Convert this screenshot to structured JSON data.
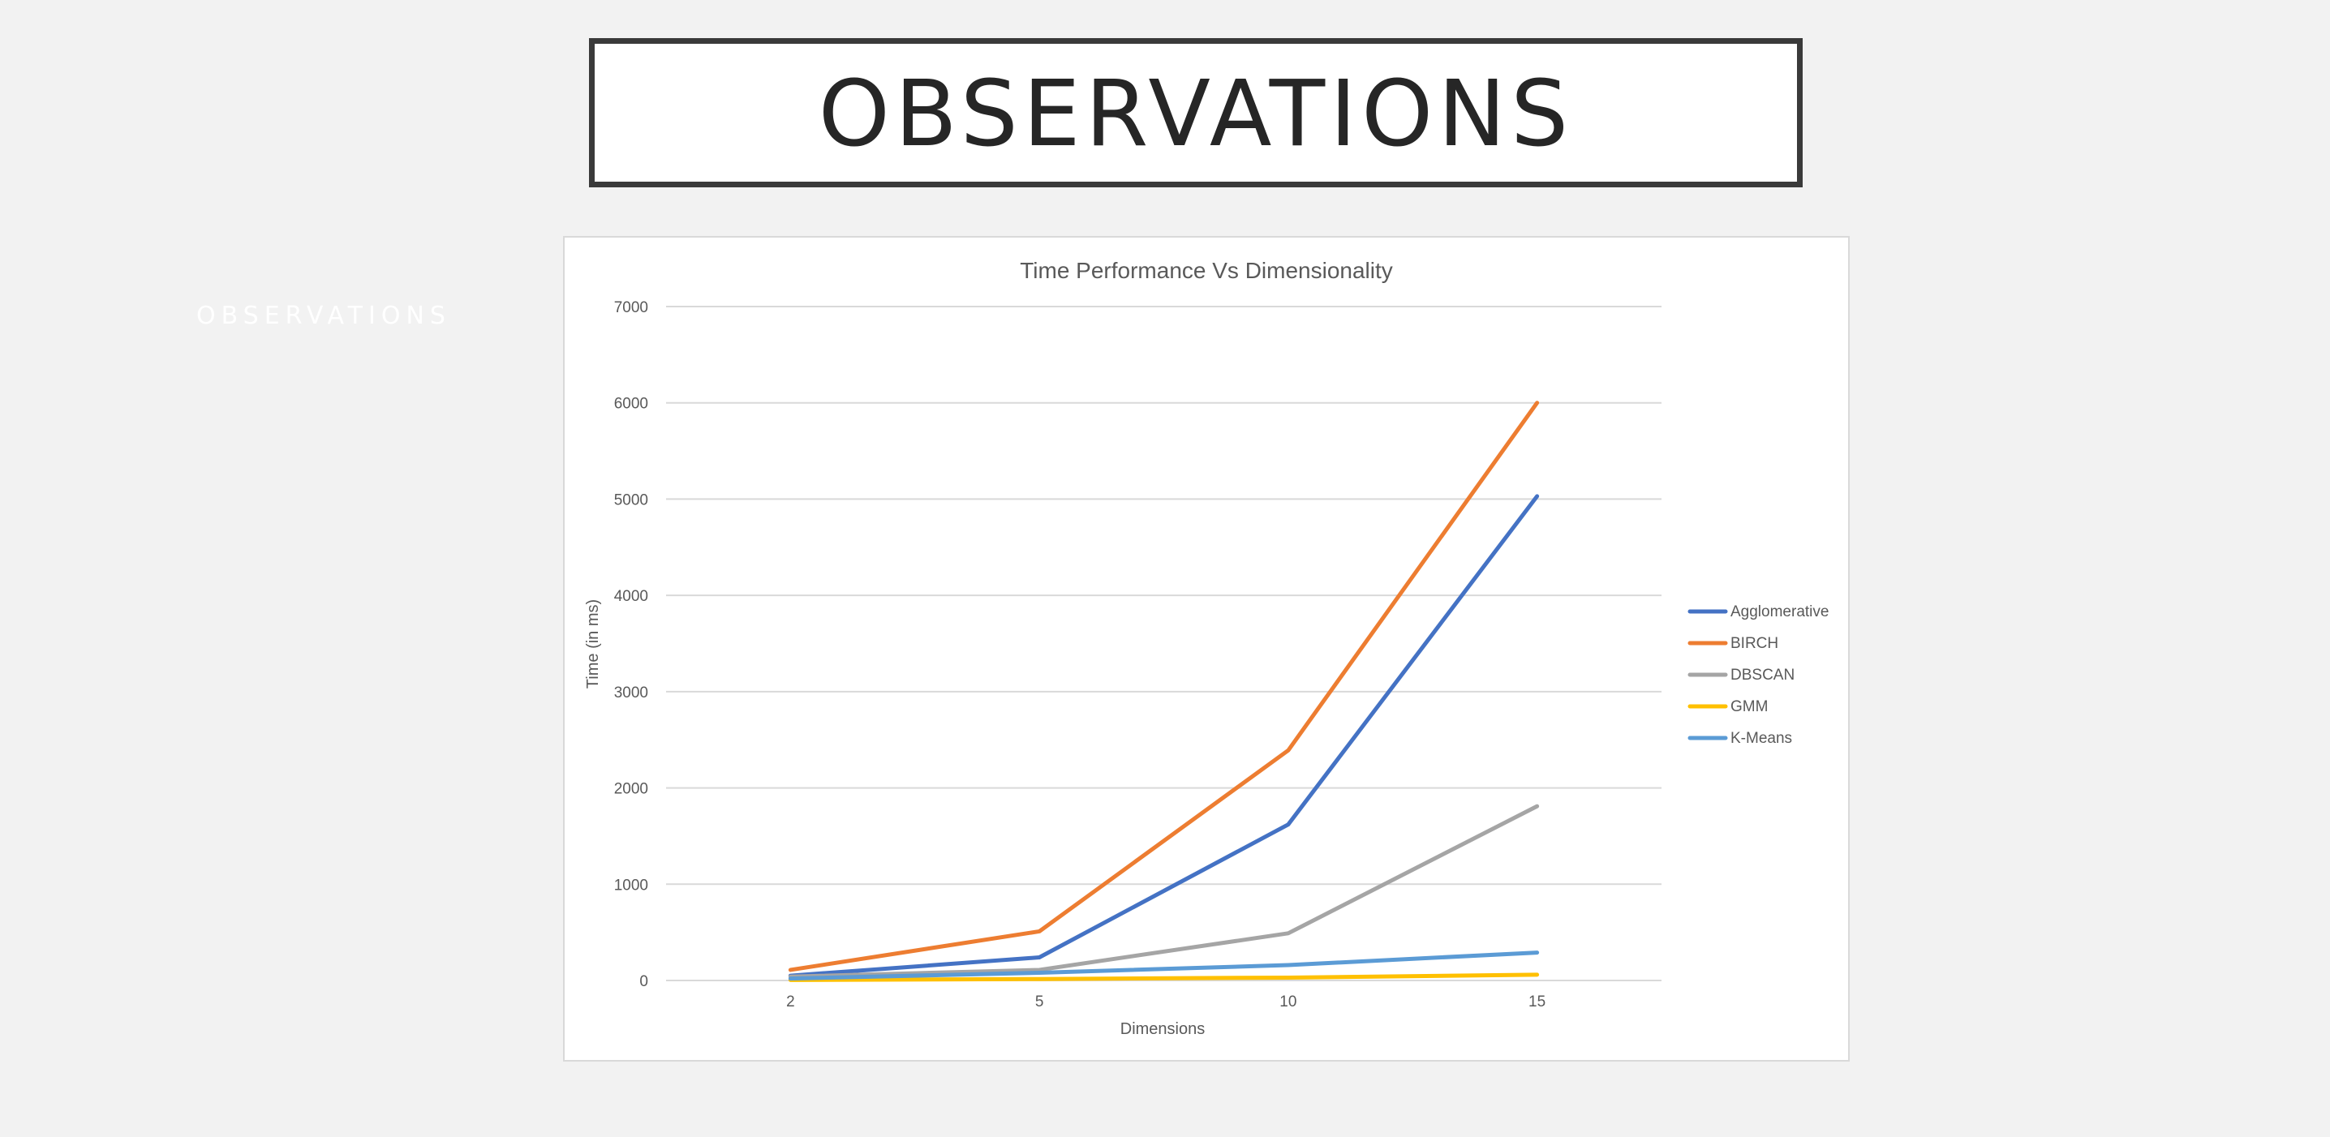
{
  "slide": {
    "heading": "OBSERVATIONS",
    "side_label": "OBSERVATIONS"
  },
  "chart_data": {
    "type": "line",
    "title": "Time Performance Vs Dimensionality",
    "xlabel": "Dimensions",
    "ylabel": "Time (in ms)",
    "categories": [
      "2",
      "5",
      "10",
      "15"
    ],
    "ylim": [
      0,
      7000
    ],
    "yticks": [
      0,
      1000,
      2000,
      3000,
      4000,
      5000,
      6000,
      7000
    ],
    "grid": true,
    "legend_position": "right",
    "series": [
      {
        "name": "Agglomerative",
        "color": "#4472c4",
        "values": [
          50,
          240,
          1620,
          5030
        ]
      },
      {
        "name": "BIRCH",
        "color": "#ed7d31",
        "values": [
          110,
          510,
          2390,
          6000
        ]
      },
      {
        "name": "DBSCAN",
        "color": "#a5a5a5",
        "values": [
          40,
          110,
          490,
          1810
        ]
      },
      {
        "name": "GMM",
        "color": "#ffc000",
        "values": [
          5,
          15,
          30,
          60
        ]
      },
      {
        "name": "K-Means",
        "color": "#5b9bd5",
        "values": [
          20,
          80,
          160,
          290
        ]
      }
    ]
  }
}
